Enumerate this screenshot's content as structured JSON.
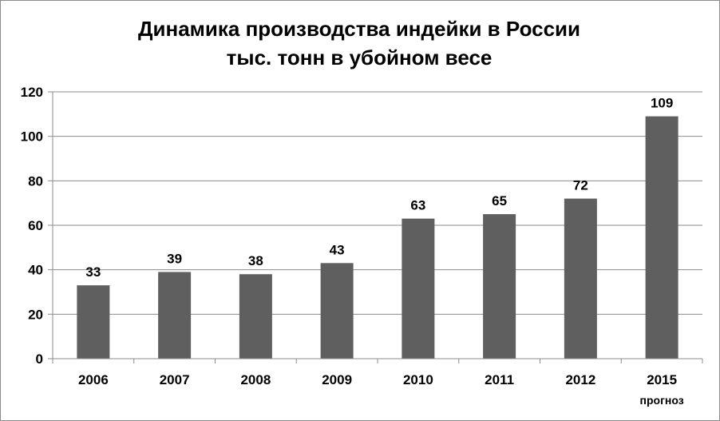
{
  "chart_data": {
    "type": "bar",
    "title_line1": "Динамика производства индейки в России",
    "title_line2": "тыс. тонн в убойном весе",
    "categories": [
      "2006",
      "2007",
      "2008",
      "2009",
      "2010",
      "2011",
      "2012",
      "2015"
    ],
    "category_notes": [
      "",
      "",
      "",
      "",
      "",
      "",
      "",
      "прогноз"
    ],
    "values": [
      33,
      39,
      38,
      43,
      63,
      65,
      72,
      109
    ],
    "ylim": [
      0,
      120
    ],
    "yticks": [
      0,
      20,
      40,
      60,
      80,
      100,
      120
    ],
    "grid": true,
    "legend": "none",
    "bar_color": "#5f5f5f"
  }
}
